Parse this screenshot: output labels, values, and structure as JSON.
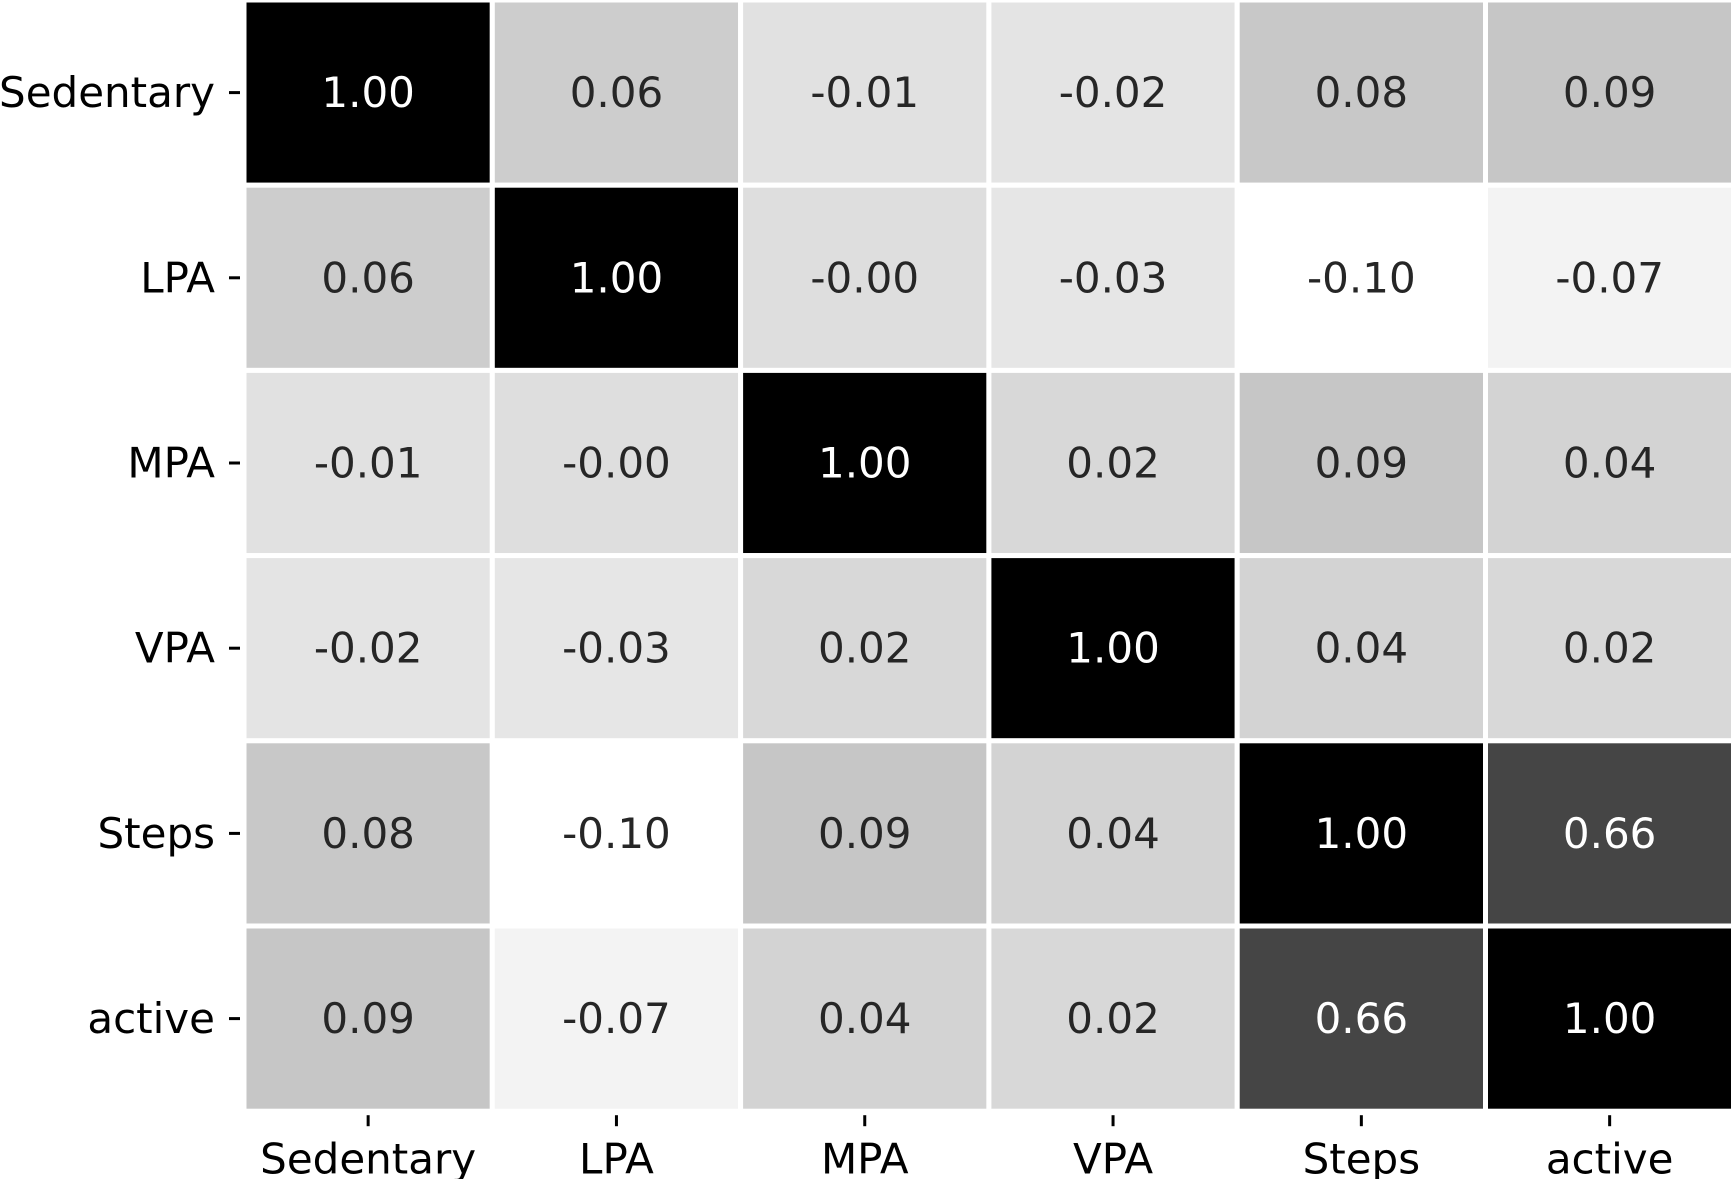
{
  "chart_data": {
    "type": "heatmap",
    "title": "",
    "xlabel": "",
    "ylabel": "",
    "x_categories": [
      "Sedentary",
      "LPA",
      "MPA",
      "VPA",
      "Steps",
      "active"
    ],
    "y_categories": [
      "Sedentary",
      "LPA",
      "MPA",
      "VPA",
      "Steps",
      "active"
    ],
    "values": [
      [
        1.0,
        0.06,
        -0.01,
        -0.02,
        0.08,
        0.09
      ],
      [
        0.06,
        1.0,
        -0.0,
        -0.03,
        -0.1,
        -0.07
      ],
      [
        -0.01,
        -0.0,
        1.0,
        0.02,
        0.09,
        0.04
      ],
      [
        -0.02,
        -0.03,
        0.02,
        1.0,
        0.04,
        0.02
      ],
      [
        0.08,
        -0.1,
        0.09,
        0.04,
        1.0,
        0.66
      ],
      [
        0.09,
        -0.07,
        0.04,
        0.02,
        0.66,
        1.0
      ]
    ],
    "labels": [
      [
        "1.00",
        "0.06",
        "-0.01",
        "-0.02",
        "0.08",
        "0.09"
      ],
      [
        "0.06",
        "1.00",
        "-0.00",
        "-0.03",
        "-0.10",
        "-0.07"
      ],
      [
        "-0.01",
        "-0.00",
        "1.00",
        "0.02",
        "0.09",
        "0.04"
      ],
      [
        "-0.02",
        "-0.03",
        "0.02",
        "1.00",
        "0.04",
        "0.02"
      ],
      [
        "0.08",
        "-0.10",
        "0.09",
        "0.04",
        "1.00",
        "0.66"
      ],
      [
        "0.09",
        "-0.07",
        "0.04",
        "0.02",
        "0.66",
        "1.00"
      ]
    ],
    "colormap": "Greys",
    "color_range": [
      -0.1,
      1.0
    ],
    "grid": false,
    "colors": {
      "low": "#ffffff",
      "high": "#000000",
      "text_dark": "#262626",
      "text_light": "#ffffff",
      "cell_border": "#ffffff"
    }
  }
}
